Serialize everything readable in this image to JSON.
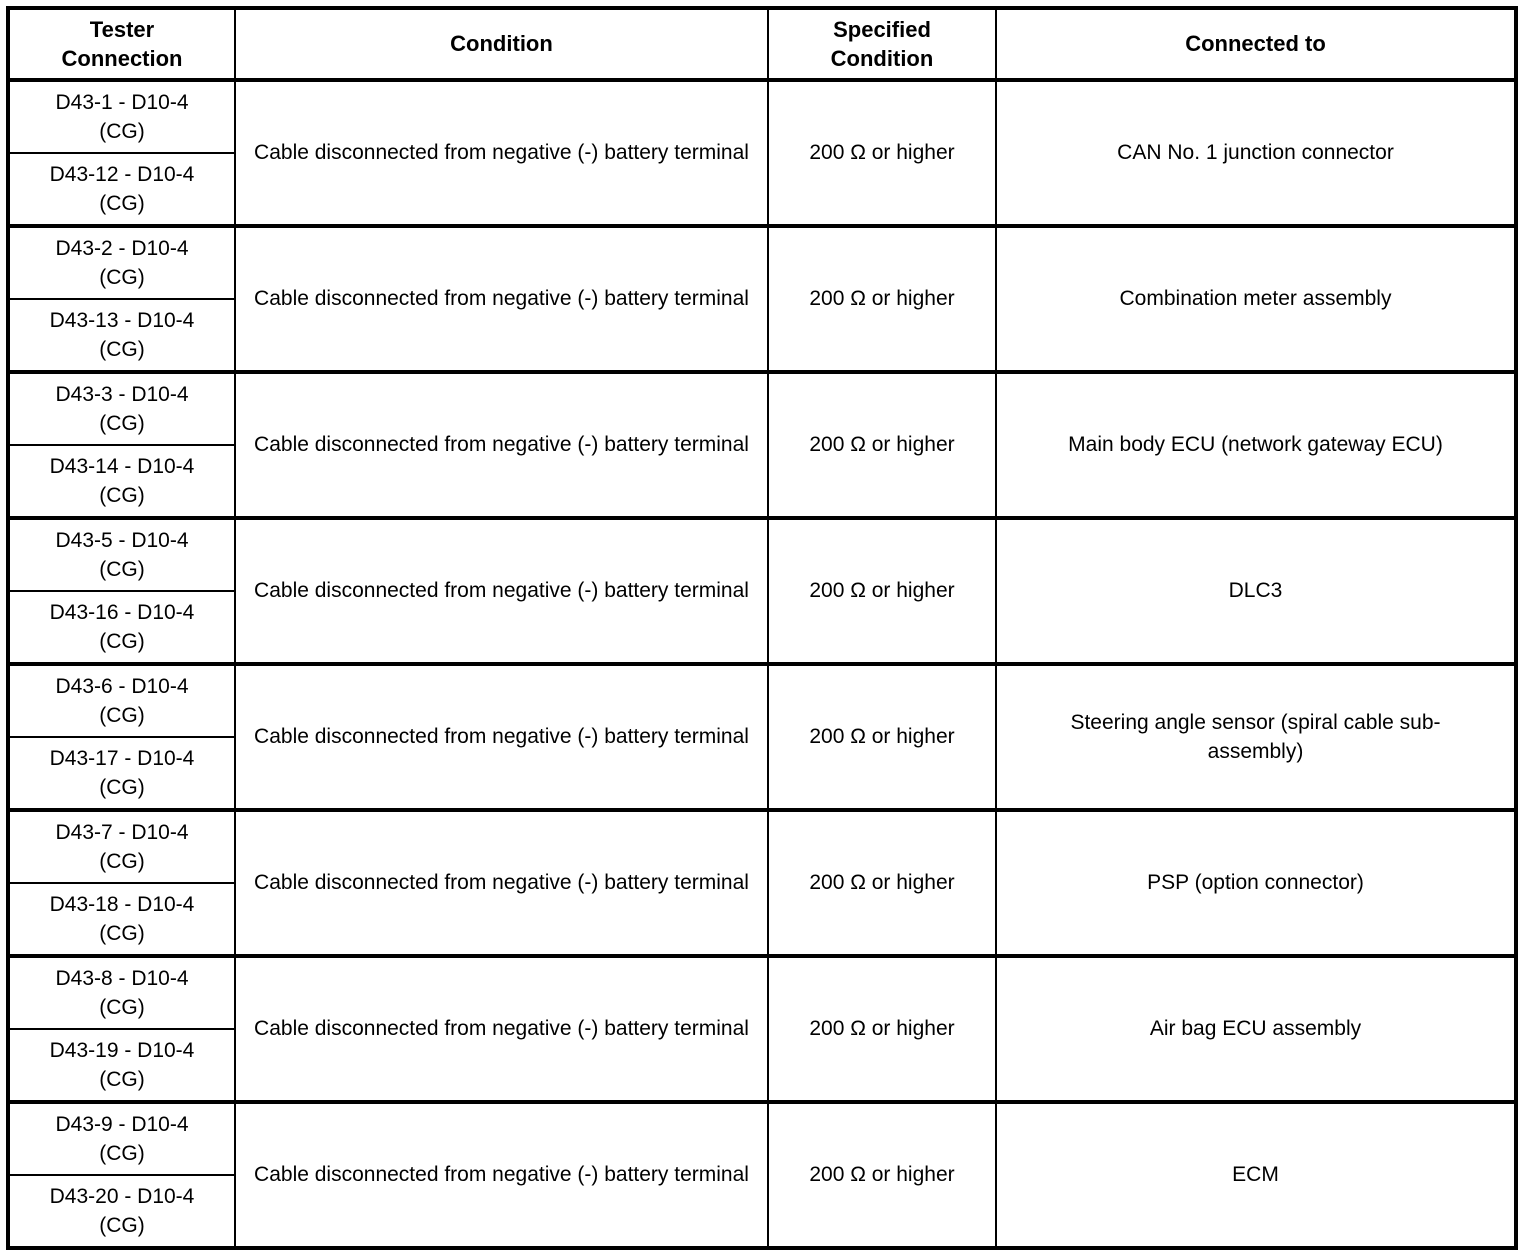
{
  "page": {
    "background_color": "#ffffff",
    "text_color": "#000000",
    "border_color": "#000000"
  },
  "table": {
    "headers": [
      "Tester Connection",
      "Condition",
      "Specified Condition",
      "Connected to"
    ],
    "shared": {
      "condition": "Cable disconnected from negative (-) battery terminal",
      "specified_condition": "200 Ω or higher"
    },
    "groups": [
      {
        "tester_a": {
          "pins": "D43-1 - D10-4",
          "cg": "(CG)"
        },
        "tester_b": {
          "pins": "D43-12 - D10-4",
          "cg": "(CG)"
        },
        "condition": "Cable disconnected from negative (-) battery terminal",
        "specified_condition": "200 Ω or higher",
        "connected_to": "CAN No. 1 junction connector"
      },
      {
        "tester_a": {
          "pins": "D43-2 - D10-4",
          "cg": "(CG)"
        },
        "tester_b": {
          "pins": "D43-13 - D10-4",
          "cg": "(CG)"
        },
        "condition": "Cable disconnected from negative (-) battery terminal",
        "specified_condition": "200 Ω or higher",
        "connected_to": "Combination meter assembly"
      },
      {
        "tester_a": {
          "pins": "D43-3 - D10-4",
          "cg": "(CG)"
        },
        "tester_b": {
          "pins": "D43-14 - D10-4",
          "cg": "(CG)"
        },
        "condition": "Cable disconnected from negative (-) battery terminal",
        "specified_condition": "200 Ω or higher",
        "connected_to": "Main body ECU (network gateway ECU)"
      },
      {
        "tester_a": {
          "pins": "D43-5 - D10-4",
          "cg": "(CG)"
        },
        "tester_b": {
          "pins": "D43-16 - D10-4",
          "cg": "(CG)"
        },
        "condition": "Cable disconnected from negative (-) battery terminal",
        "specified_condition": "200 Ω or higher",
        "connected_to": "DLC3"
      },
      {
        "tester_a": {
          "pins": "D43-6 - D10-4",
          "cg": "(CG)"
        },
        "tester_b": {
          "pins": "D43-17 - D10-4",
          "cg": "(CG)"
        },
        "condition": "Cable disconnected from negative (-) battery terminal",
        "specified_condition": "200 Ω or higher",
        "connected_to": "Steering angle sensor (spiral cable sub-assembly)"
      },
      {
        "tester_a": {
          "pins": "D43-7 - D10-4",
          "cg": "(CG)"
        },
        "tester_b": {
          "pins": "D43-18 - D10-4",
          "cg": "(CG)"
        },
        "condition": "Cable disconnected from negative (-) battery terminal",
        "specified_condition": "200 Ω or higher",
        "connected_to": "PSP (option connector)"
      },
      {
        "tester_a": {
          "pins": "D43-8 - D10-4",
          "cg": "(CG)"
        },
        "tester_b": {
          "pins": "D43-19 - D10-4",
          "cg": "(CG)"
        },
        "condition": "Cable disconnected from negative (-) battery terminal",
        "specified_condition": "200 Ω or higher",
        "connected_to": "Air bag ECU assembly"
      },
      {
        "tester_a": {
          "pins": "D43-9 - D10-4",
          "cg": "(CG)"
        },
        "tester_b": {
          "pins": "D43-20 - D10-4",
          "cg": "(CG)"
        },
        "condition": "Cable disconnected from negative (-) battery terminal",
        "specified_condition": "200 Ω or higher",
        "connected_to": "ECM"
      }
    ]
  }
}
